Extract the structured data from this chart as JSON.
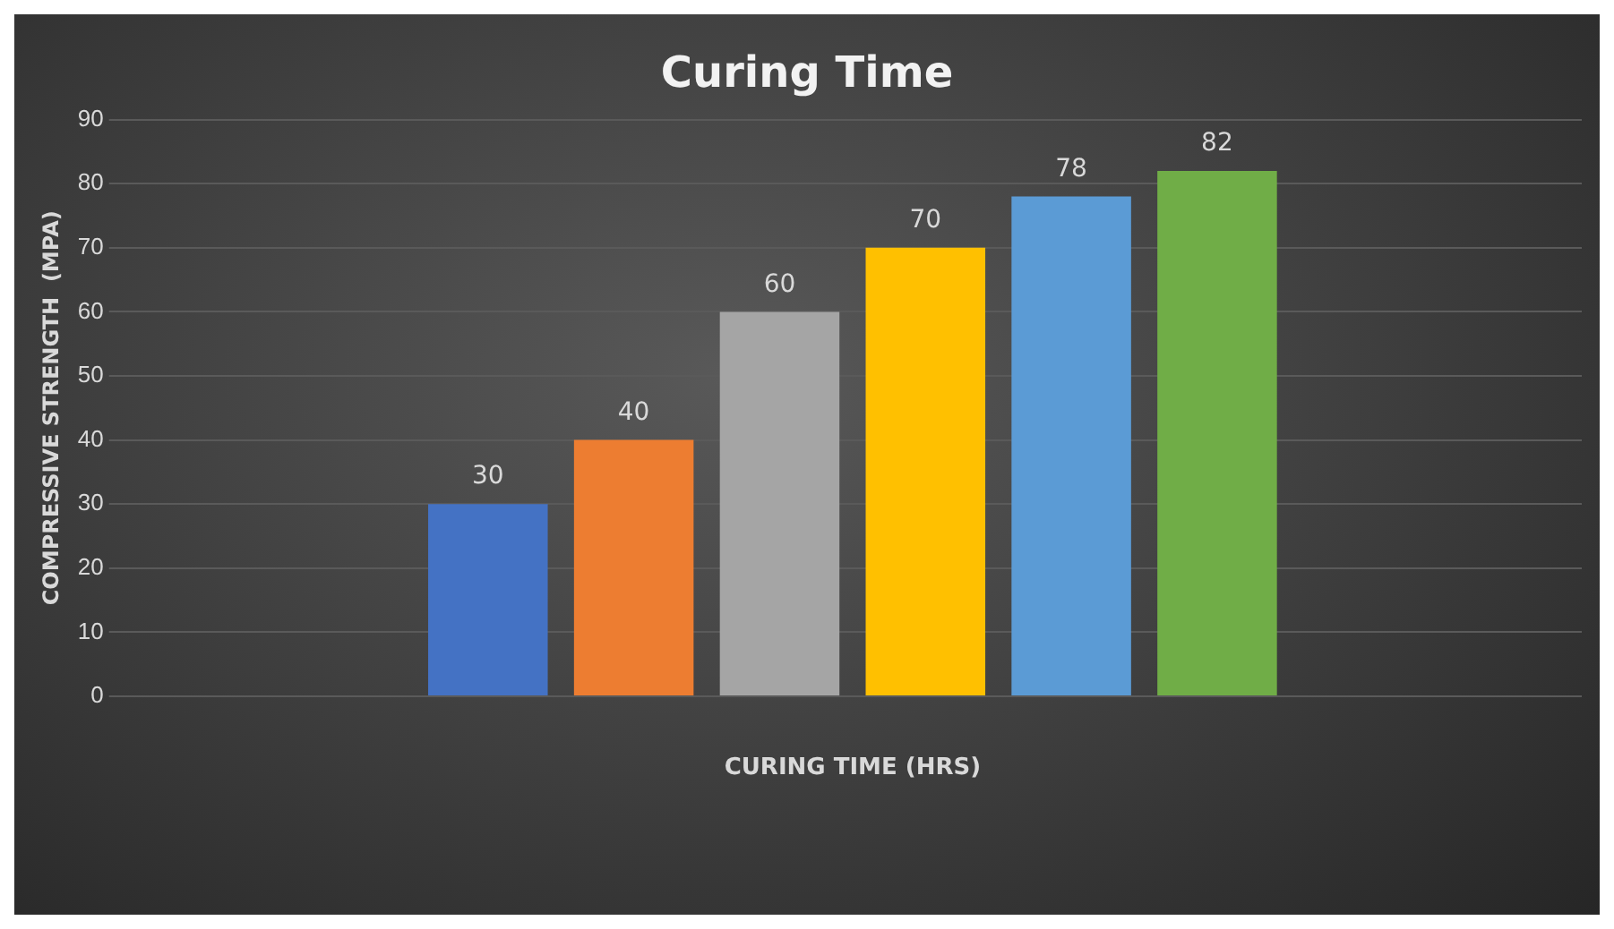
{
  "chart_data": {
    "type": "bar",
    "title": "Curing Time",
    "xlabel": "CURING TIME (HRS)",
    "ylabel": "COMPRESSIVE STRENGTH  (MPA)",
    "categories": [
      null
    ],
    "series": [
      {
        "color": "#4472c4",
        "values": [
          30
        ]
      },
      {
        "color": "#ed7d31",
        "values": [
          40
        ]
      },
      {
        "color": "#a5a5a5",
        "values": [
          60
        ]
      },
      {
        "color": "#ffc000",
        "values": [
          70
        ]
      },
      {
        "color": "#5b9bd5",
        "values": [
          78
        ]
      },
      {
        "color": "#70ad47",
        "values": [
          82
        ]
      }
    ],
    "ylim": [
      0,
      90
    ],
    "yticks": [
      0,
      10,
      20,
      30,
      40,
      50,
      60,
      70,
      80,
      90
    ],
    "grid": "y",
    "legend": false,
    "data_labels": true
  }
}
